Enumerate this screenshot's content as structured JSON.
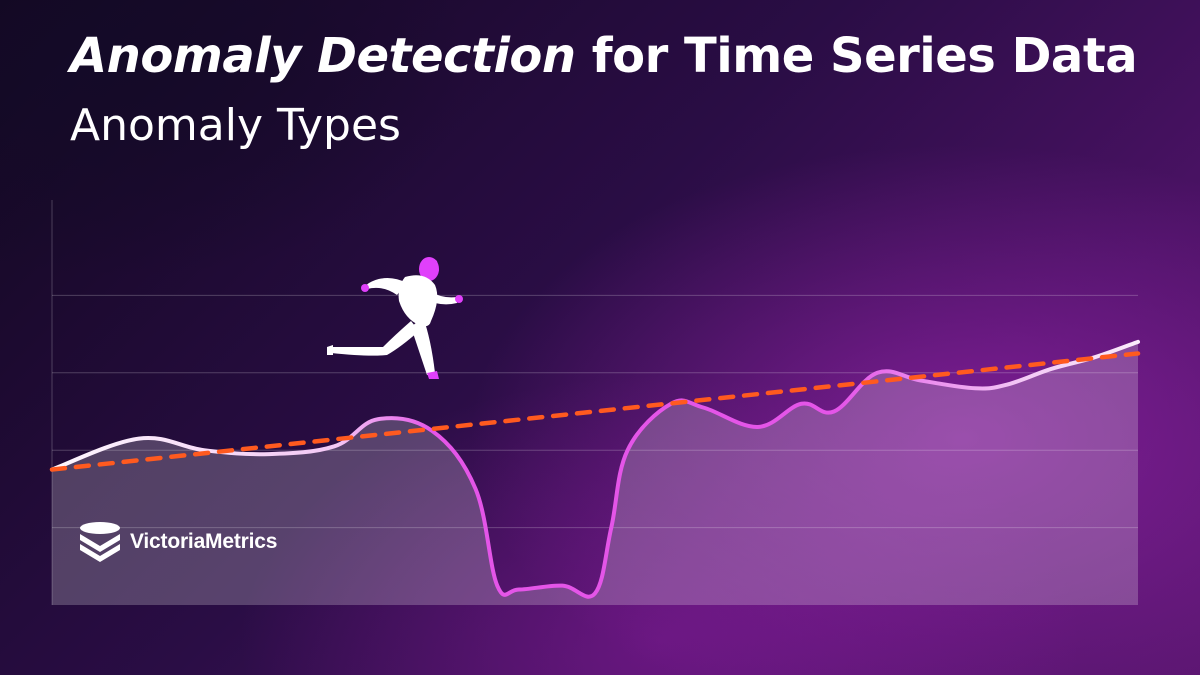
{
  "header": {
    "title_em": "Anomaly Detection",
    "title_rest": " for Time Series Data",
    "subtitle": "Anomaly Types"
  },
  "brand": {
    "name": "VictoriaMetrics",
    "logo_icon": "victoriametrics-logo-icon"
  },
  "figure": {
    "icon": "running-person-icon",
    "skin_color": "#e040fb",
    "body_color": "#ffffff"
  },
  "colors": {
    "line_start": "#ffffff",
    "line_anomaly": "#e455e8",
    "trend": "#ff5a1f",
    "grid": "rgba(255,255,255,0.22)",
    "area_fill": "rgba(255,255,255,0.22)"
  },
  "chart_data": {
    "type": "line",
    "title": "",
    "xlabel": "",
    "ylabel": "",
    "xlim": [
      0,
      100
    ],
    "ylim": [
      0,
      100
    ],
    "gridlines_y": [
      20,
      40,
      60,
      80
    ],
    "grid": true,
    "legend": "none",
    "series": [
      {
        "role": "observed",
        "style": "solid",
        "x": [
          0,
          8,
          14,
          20,
          26,
          30,
          35,
          39,
          41,
          43,
          47,
          50,
          51.5,
          53,
          57,
          60,
          65,
          69,
          72,
          76,
          80,
          85,
          88,
          92,
          96,
          100
        ],
        "y": [
          35,
          43,
          40,
          39,
          41,
          48,
          45,
          30,
          5,
          4,
          5,
          3,
          20,
          40,
          52,
          51,
          46,
          52,
          50,
          60,
          58,
          56,
          57,
          61,
          64,
          68
        ]
      },
      {
        "role": "trend",
        "style": "dashed",
        "x": [
          0,
          100
        ],
        "y": [
          35,
          65
        ]
      }
    ]
  }
}
